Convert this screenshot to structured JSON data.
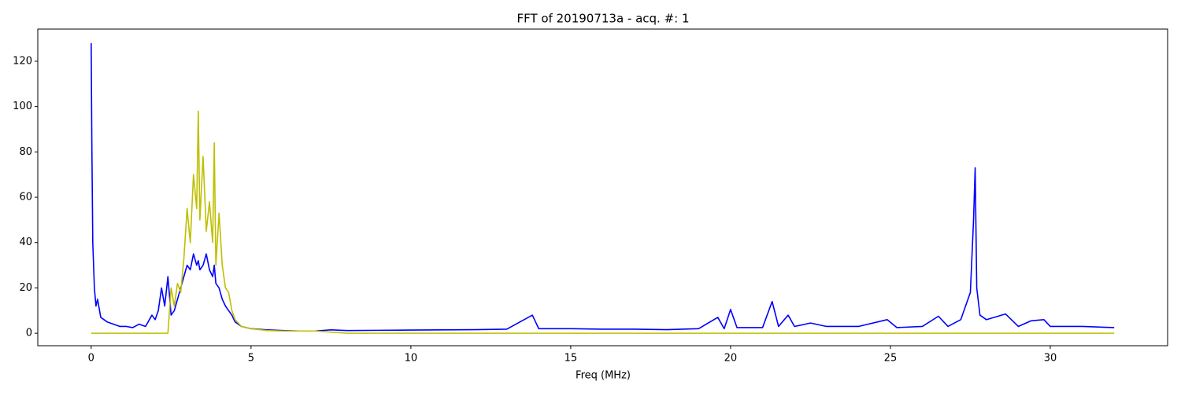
{
  "chart_data": {
    "type": "line",
    "title": "FFT of 20190713a - acq. #: 1",
    "x_label": "Freq (MHz)",
    "x": [
      0,
      0.02,
      0.05,
      0.1,
      0.15,
      0.2,
      0.3,
      0.4,
      0.5,
      0.7,
      0.9,
      1.1,
      1.3,
      1.5,
      1.7,
      1.9,
      2.0,
      2.1,
      2.2,
      2.3,
      2.4,
      2.5,
      2.6,
      2.7,
      2.8,
      2.9,
      3.0,
      3.1,
      3.2,
      3.3,
      3.35,
      3.4,
      3.5,
      3.6,
      3.7,
      3.8,
      3.85,
      3.9,
      4.0,
      4.1,
      4.2,
      4.3,
      4.4,
      4.5,
      4.7,
      5.0,
      5.5,
      6.0,
      6.5,
      7.0,
      7.5,
      8,
      9,
      10,
      11,
      12,
      13,
      13.8,
      14,
      15,
      16,
      17,
      18,
      19,
      19.6,
      19.8,
      20,
      20.2,
      21,
      21.3,
      21.5,
      21.8,
      22,
      22.5,
      23,
      24,
      24.9,
      25.2,
      26,
      26.5,
      26.8,
      27.2,
      27.5,
      27.6,
      27.65,
      27.7,
      27.8,
      28,
      28.6,
      29,
      29.4,
      29.8,
      30,
      31,
      32
    ],
    "series": [
      {
        "color": "#0000ff",
        "values": [
          128,
          85,
          40,
          20,
          12,
          15,
          7,
          6,
          5,
          4,
          3,
          3,
          2.5,
          4,
          3,
          8,
          6,
          10,
          20,
          12,
          25,
          8,
          10,
          15,
          20,
          25,
          30,
          28,
          35,
          30,
          32,
          28,
          30,
          35,
          28,
          25,
          30,
          22,
          20,
          15,
          12,
          10,
          8,
          5,
          3,
          2,
          1.5,
          1.2,
          1,
          1,
          1.5,
          1.2,
          1.3,
          1.4,
          1.5,
          1.6,
          1.8,
          8,
          2,
          2,
          1.8,
          1.8,
          1.6,
          2,
          7,
          2,
          10.5,
          2.5,
          2.5,
          14,
          3,
          8,
          3,
          4.5,
          3,
          3,
          6,
          2.5,
          3,
          7.5,
          3,
          6,
          18,
          50,
          73,
          20,
          8,
          6,
          8.5,
          3,
          5.5,
          6,
          3,
          3,
          2.5
        ]
      },
      {
        "color": "#bfbf00",
        "values": [
          0,
          0,
          0,
          0,
          0,
          0,
          0,
          0,
          0,
          0,
          0,
          0,
          0,
          0,
          0,
          0,
          0,
          0,
          0,
          0,
          0,
          20,
          12,
          22,
          18,
          33,
          55,
          40,
          70,
          55,
          98,
          50,
          78,
          45,
          58,
          40,
          84,
          30,
          53,
          30,
          20,
          18,
          10,
          6,
          3,
          2,
          1.2,
          1,
          1,
          1,
          0.5,
          0,
          0,
          0,
          0,
          0,
          0,
          0,
          0,
          0,
          0,
          0,
          0,
          0,
          0,
          0,
          0,
          0,
          0,
          0,
          0,
          0,
          0,
          0,
          0,
          0,
          0,
          0,
          0,
          0,
          0,
          0,
          0,
          0,
          0,
          0,
          0,
          0,
          0,
          0,
          0,
          0,
          0,
          0,
          0
        ]
      }
    ],
    "xlim": [
      -1.67,
      33.67
    ],
    "ylim": [
      -5.5,
      134.2
    ],
    "xticks": [
      0,
      5,
      10,
      15,
      20,
      25,
      30
    ],
    "yticks": [
      0,
      20,
      40,
      60,
      80,
      100,
      120
    ],
    "grid": false
  }
}
